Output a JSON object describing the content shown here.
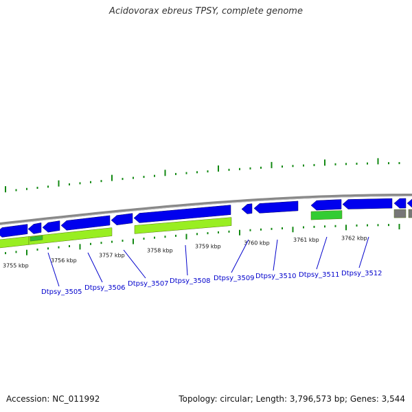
{
  "title": "Acidovorax ebreus TPSY, complete genome",
  "footer": {
    "accession": "Accession: NC_011992",
    "summary": "Topology: circular; Length: 3,796,573 bp; Genes: 3,544"
  },
  "kbp_labels": [
    "3755 kbp",
    "3756 kbp",
    "3757 kbp",
    "3758 kbp",
    "3759 kbp",
    "3760 kbp",
    "3761 kbp",
    "3762 kbp"
  ],
  "gene_labels": [
    "Dtpsy_3505",
    "Dtpsy_3506",
    "Dtpsy_3507",
    "Dtpsy_3508",
    "Dtpsy_3509",
    "Dtpsy_3510",
    "Dtpsy_3511",
    "Dtpsy_3512"
  ],
  "colors": {
    "cds": "#0000ee",
    "gene": "#99ee22",
    "rna": "#33bb33",
    "backbone": "#888888",
    "gc_tick": "#118811",
    "gene_label": "#0000cc"
  },
  "icons": [
    "gene-arrow-icon"
  ]
}
